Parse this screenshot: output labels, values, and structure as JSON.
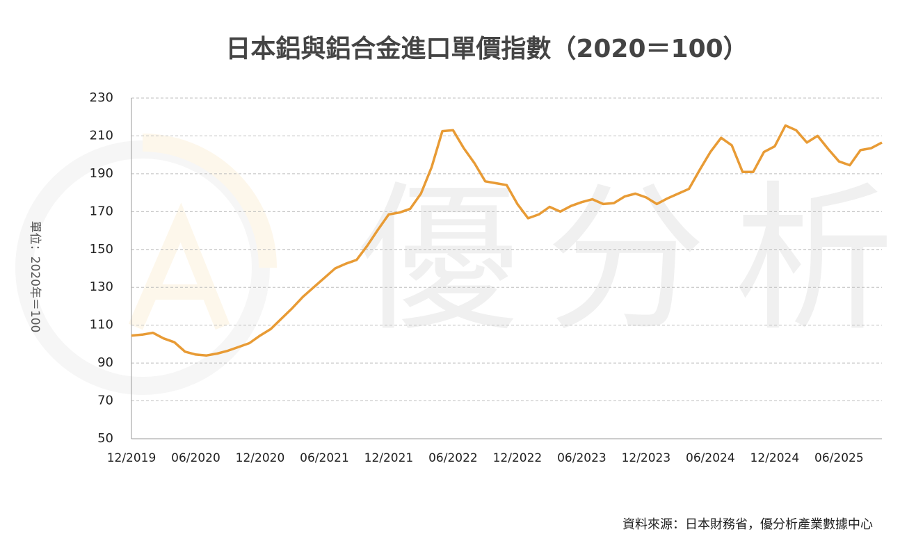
{
  "chart_data": {
    "type": "line",
    "title": "日本鋁與鋁合金進口單價指數（2020＝100）",
    "y_label": "單位：2020年＝100",
    "source": "資料來源：日本財務省，優分析產業數據中心",
    "watermark": "優分析",
    "categories": [
      "12/2019",
      null,
      null,
      null,
      null,
      null,
      "06/2020",
      null,
      null,
      null,
      null,
      null,
      "12/2020",
      null,
      null,
      null,
      null,
      null,
      "06/2021",
      null,
      null,
      null,
      null,
      null,
      "12/2021",
      null,
      null,
      null,
      null,
      null,
      "06/2022",
      null,
      null,
      null,
      null,
      null,
      "12/2022",
      null,
      null,
      null,
      null,
      null,
      "06/2023",
      null,
      null,
      null,
      null,
      null,
      "12/2023",
      null,
      null,
      null,
      null,
      null,
      "06/2024",
      null,
      null,
      null,
      null,
      null,
      "12/2024",
      null,
      null,
      null,
      null,
      null,
      "06/2025",
      null,
      null,
      null,
      null
    ],
    "series": [
      {
        "name": "進口單價指數",
        "color": "#e89b35",
        "values": [
          104.5,
          105,
          106,
          103,
          101,
          96,
          94.5,
          94,
          95,
          96.5,
          98.5,
          100.5,
          104.5,
          108,
          113.5,
          119,
          125,
          130,
          135,
          140,
          142.5,
          144.5,
          152,
          160.5,
          168.5,
          169.5,
          171.5,
          179.5,
          193.5,
          212.5,
          213,
          203.5,
          195.5,
          186,
          185,
          184,
          174,
          166.5,
          168.5,
          172.5,
          170,
          173,
          175,
          176.5,
          174,
          174.5,
          178,
          179.5,
          177.5,
          174,
          177,
          179.5,
          182,
          192,
          201.5,
          209,
          205,
          191,
          191,
          201.5,
          204.5,
          215.5,
          213,
          206.5,
          210,
          203,
          196.5,
          194.5,
          202.5,
          203.5,
          206.5
        ]
      }
    ],
    "ylim": [
      50,
      230
    ],
    "yticks": [
      50,
      70,
      90,
      110,
      130,
      150,
      170,
      190,
      210,
      230
    ],
    "grid": true
  }
}
